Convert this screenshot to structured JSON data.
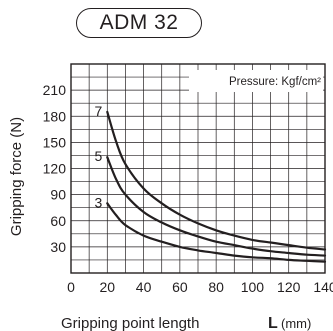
{
  "model_badge": "ADM 32",
  "chart_data": {
    "type": "line",
    "xlabel": "Gripping point length",
    "xunit_letter": "L",
    "xunit": "(mm)",
    "ylabel": "Gripping force (N)",
    "annotation": "Pressure: Kgf/cm²",
    "xlim": [
      0,
      140
    ],
    "ylim": [
      0,
      240
    ],
    "xticks": [
      0,
      20,
      40,
      60,
      80,
      100,
      120,
      140
    ],
    "yticks": [
      30,
      60,
      90,
      120,
      150,
      180,
      210
    ],
    "grid": true,
    "series": [
      {
        "name": "7",
        "x": [
          20,
          25,
          30,
          40,
          50,
          60,
          70,
          80,
          90,
          100,
          110,
          120,
          130,
          140
        ],
        "y": [
          185,
          150,
          125,
          97,
          80,
          67,
          57,
          49,
          43,
          38,
          35,
          32,
          29,
          27
        ]
      },
      {
        "name": "5",
        "x": [
          20,
          25,
          30,
          40,
          50,
          60,
          70,
          80,
          90,
          100,
          110,
          120,
          130,
          140
        ],
        "y": [
          133,
          107,
          90,
          70,
          58,
          49,
          42,
          36,
          32,
          28,
          25,
          23,
          21,
          20
        ]
      },
      {
        "name": "3",
        "x": [
          20,
          25,
          30,
          40,
          50,
          60,
          70,
          80,
          90,
          100,
          110,
          120,
          130,
          140
        ],
        "y": [
          80,
          66,
          55,
          43,
          36,
          30,
          26,
          23,
          20,
          18,
          17,
          15,
          14,
          13
        ]
      }
    ]
  }
}
